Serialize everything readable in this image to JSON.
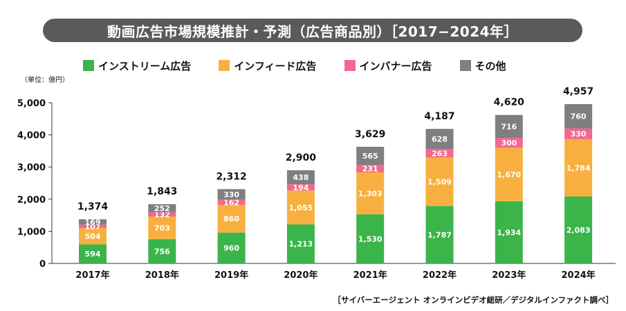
{
  "title": "動画広告市場規模推計・予測（広告商品別）［2017−2024年］",
  "unit_label": "（単位：億円）",
  "source": "［サイバーエージェント オンラインビデオ総研／デジタルインファクト調べ］",
  "colors": {
    "stream": "#3bb44a",
    "feed": "#f7b040",
    "banner": "#f4678f",
    "other": "#7f7f7f"
  },
  "chart_data": {
    "type": "bar",
    "stacked": true,
    "title": "動画広告市場規模推計・予測（広告商品別）［2017−2024年］",
    "ylabel": "（単位：億円）",
    "ylim": [
      0,
      5000
    ],
    "yticks": [
      "0",
      "1,000",
      "2,000",
      "3,000",
      "4,000",
      "5,000"
    ],
    "ytick_values": [
      0,
      1000,
      2000,
      3000,
      4000,
      5000
    ],
    "categories": [
      "2017年",
      "2018年",
      "2019年",
      "2020年",
      "2021年",
      "2022年",
      "2023年",
      "2024年"
    ],
    "series": [
      {
        "name": "インストリーム広告",
        "color_key": "stream",
        "values": [
          594,
          756,
          960,
          1213,
          1530,
          1787,
          1934,
          2083
        ],
        "labels": [
          "594",
          "756",
          "960",
          "1,213",
          "1,530",
          "1,787",
          "1,934",
          "2,083"
        ]
      },
      {
        "name": "インフィード広告",
        "color_key": "feed",
        "values": [
          504,
          703,
          860,
          1055,
          1303,
          1509,
          1670,
          1784
        ],
        "labels": [
          "504",
          "703",
          "860",
          "1,055",
          "1,303",
          "1,509",
          "1,670",
          "1,784"
        ]
      },
      {
        "name": "インバナー広告",
        "color_key": "banner",
        "values": [
          107,
          132,
          162,
          194,
          231,
          263,
          300,
          330
        ],
        "labels": [
          "107",
          "132",
          "162",
          "194",
          "231",
          "263",
          "300",
          "330"
        ]
      },
      {
        "name": "その他",
        "color_key": "other",
        "values": [
          169,
          252,
          330,
          438,
          565,
          628,
          716,
          760
        ],
        "labels": [
          "169",
          "252",
          "330",
          "438",
          "565",
          "628",
          "716",
          "760"
        ]
      }
    ],
    "totals": [
      "1,374",
      "1,843",
      "2,312",
      "2,900",
      "3,629",
      "4,187",
      "4,620",
      "4,957"
    ],
    "legend_position": "top",
    "grid": false
  }
}
